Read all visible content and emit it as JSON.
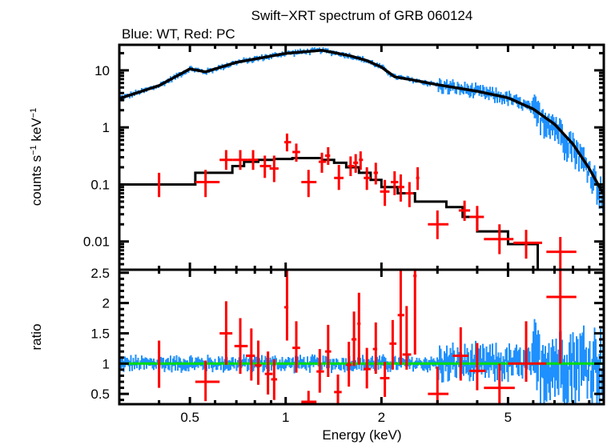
{
  "chart_data": [
    {
      "type": "scatter",
      "panel": "spectrum",
      "title": "Swift−XRT spectrum of GRB 060124",
      "subtitle": "Blue: WT, Red: PC",
      "xlabel": "Energy (keV)",
      "ylabel": "counts s⁻¹ keV⁻¹",
      "xscale": "log",
      "yscale": "log",
      "xlim": [
        0.3,
        10
      ],
      "ylim": [
        0.0032,
        28
      ],
      "xticks": [
        {
          "v": 0.5,
          "label": "0.5"
        },
        {
          "v": 1,
          "label": "1"
        },
        {
          "v": 2,
          "label": "2"
        },
        {
          "v": 5,
          "label": "5"
        }
      ],
      "yticks": [
        {
          "v": 10,
          "label": "10"
        },
        {
          "v": 1,
          "label": "1"
        },
        {
          "v": 0.1,
          "label": "0.1"
        },
        {
          "v": 0.01,
          "label": "0.01"
        }
      ],
      "series": [
        {
          "name": "WT model",
          "color": "#000000",
          "kind": "line",
          "x": [
            0.3,
            0.4,
            0.5,
            0.56,
            0.7,
            1.0,
            1.3,
            1.6,
            1.8,
            2.0,
            2.2,
            2.5,
            3.0,
            4.0,
            5.0,
            6.0,
            7.0,
            8.0,
            9.0,
            10.0
          ],
          "y": [
            3.2,
            5.4,
            10.6,
            9.4,
            13.8,
            19.8,
            22.5,
            17.9,
            14.8,
            11.4,
            7.7,
            6.8,
            5.6,
            4.3,
            3.3,
            2.1,
            1.14,
            0.51,
            0.19,
            0.066
          ]
        },
        {
          "name": "PC model",
          "color": "#000000",
          "kind": "step",
          "edges": [
            0.3,
            0.52,
            0.68,
            0.74,
            0.82,
            0.92,
            1.05,
            1.3,
            1.42,
            1.55,
            1.7,
            1.85,
            2.0,
            2.25,
            2.55,
            3.2,
            3.6,
            4.0,
            5.0,
            6.2,
            7.0
          ],
          "y": [
            0.1,
            0.16,
            0.21,
            0.25,
            0.27,
            0.28,
            0.29,
            0.27,
            0.24,
            0.2,
            0.16,
            0.12,
            0.09,
            0.07,
            0.05,
            0.04,
            0.027,
            0.015,
            0.009,
            0.0032
          ]
        },
        {
          "name": "PC data",
          "color": "#ff0000",
          "kind": "errorbar",
          "points": [
            {
              "x": 0.4,
              "xlo": 0.4,
              "xhi": 0.4,
              "y": 0.1,
              "ylo": 0.06,
              "yhi": 0.16
            },
            {
              "x": 0.56,
              "xlo": 0.52,
              "xhi": 0.62,
              "y": 0.11,
              "ylo": 0.06,
              "yhi": 0.18
            },
            {
              "x": 0.65,
              "xlo": 0.62,
              "xhi": 0.68,
              "y": 0.27,
              "ylo": 0.18,
              "yhi": 0.4
            },
            {
              "x": 0.72,
              "xlo": 0.68,
              "xhi": 0.76,
              "y": 0.27,
              "ylo": 0.18,
              "yhi": 0.4
            },
            {
              "x": 0.79,
              "xlo": 0.76,
              "xhi": 0.82,
              "y": 0.27,
              "ylo": 0.18,
              "yhi": 0.4
            },
            {
              "x": 0.86,
              "xlo": 0.83,
              "xhi": 0.9,
              "y": 0.21,
              "ylo": 0.13,
              "yhi": 0.32
            },
            {
              "x": 0.92,
              "xlo": 0.89,
              "xhi": 0.95,
              "y": 0.19,
              "ylo": 0.11,
              "yhi": 0.32
            },
            {
              "x": 1.01,
              "xlo": 0.99,
              "xhi": 1.04,
              "y": 0.55,
              "ylo": 0.38,
              "yhi": 0.78
            },
            {
              "x": 1.08,
              "xlo": 1.05,
              "xhi": 1.11,
              "y": 0.37,
              "ylo": 0.25,
              "yhi": 0.52
            },
            {
              "x": 1.18,
              "xlo": 1.12,
              "xhi": 1.25,
              "y": 0.11,
              "ylo": 0.06,
              "yhi": 0.18
            },
            {
              "x": 1.3,
              "xlo": 1.27,
              "xhi": 1.34,
              "y": 0.25,
              "ylo": 0.16,
              "yhi": 0.36
            },
            {
              "x": 1.36,
              "xlo": 1.33,
              "xhi": 1.38,
              "y": 0.32,
              "ylo": 0.22,
              "yhi": 0.45
            },
            {
              "x": 1.47,
              "xlo": 1.42,
              "xhi": 1.52,
              "y": 0.13,
              "ylo": 0.08,
              "yhi": 0.22
            },
            {
              "x": 1.6,
              "xlo": 1.57,
              "xhi": 1.64,
              "y": 0.21,
              "ylo": 0.14,
              "yhi": 0.31
            },
            {
              "x": 1.66,
              "xlo": 1.63,
              "xhi": 1.69,
              "y": 0.24,
              "ylo": 0.16,
              "yhi": 0.34
            },
            {
              "x": 1.72,
              "xlo": 1.7,
              "xhi": 1.75,
              "y": 0.27,
              "ylo": 0.18,
              "yhi": 0.38
            },
            {
              "x": 1.8,
              "xlo": 1.76,
              "xhi": 1.85,
              "y": 0.13,
              "ylo": 0.08,
              "yhi": 0.2
            },
            {
              "x": 1.92,
              "xlo": 1.89,
              "xhi": 1.95,
              "y": 0.16,
              "ylo": 0.1,
              "yhi": 0.24
            },
            {
              "x": 2.05,
              "xlo": 1.98,
              "xhi": 2.12,
              "y": 0.075,
              "ylo": 0.042,
              "yhi": 0.12
            },
            {
              "x": 2.2,
              "xlo": 2.14,
              "xhi": 2.26,
              "y": 0.11,
              "ylo": 0.065,
              "yhi": 0.17
            },
            {
              "x": 2.3,
              "xlo": 2.25,
              "xhi": 2.36,
              "y": 0.09,
              "ylo": 0.05,
              "yhi": 0.15
            },
            {
              "x": 2.45,
              "xlo": 2.38,
              "xhi": 2.52,
              "y": 0.07,
              "ylo": 0.04,
              "yhi": 0.11
            },
            {
              "x": 2.6,
              "xlo": 2.57,
              "xhi": 2.63,
              "y": 0.13,
              "ylo": 0.08,
              "yhi": 0.2
            },
            {
              "x": 3.0,
              "xlo": 2.8,
              "xhi": 3.25,
              "y": 0.02,
              "ylo": 0.011,
              "yhi": 0.035
            },
            {
              "x": 3.65,
              "xlo": 3.5,
              "xhi": 3.8,
              "y": 0.035,
              "ylo": 0.023,
              "yhi": 0.052
            },
            {
              "x": 4.0,
              "xlo": 3.78,
              "xhi": 4.2,
              "y": 0.027,
              "ylo": 0.015,
              "yhi": 0.042
            },
            {
              "x": 4.7,
              "xlo": 4.2,
              "xhi": 5.2,
              "y": 0.011,
              "ylo": 0.006,
              "yhi": 0.02
            },
            {
              "x": 5.7,
              "xlo": 5.2,
              "xhi": 6.4,
              "y": 0.0095,
              "ylo": 0.005,
              "yhi": 0.016
            },
            {
              "x": 7.3,
              "xlo": 6.6,
              "xhi": 8.2,
              "y": 0.0066,
              "ylo": 0.0032,
              "yhi": 0.012
            }
          ]
        },
        {
          "name": "WT data",
          "color": "#1e90ff",
          "kind": "noisy-band",
          "note": "dense binned data closely scattered around WT model, increasing scatter above 6 keV"
        }
      ]
    },
    {
      "type": "scatter",
      "panel": "ratio",
      "xlabel": "Energy (keV)",
      "ylabel": "ratio",
      "xscale": "log",
      "xlim": [
        0.3,
        10
      ],
      "ylim": [
        0.33,
        2.55
      ],
      "xticks": [
        {
          "v": 0.5,
          "label": "0.5"
        },
        {
          "v": 1,
          "label": "1"
        },
        {
          "v": 2,
          "label": "2"
        },
        {
          "v": 5,
          "label": "5"
        }
      ],
      "yticks": [
        {
          "v": 2.5,
          "label": "2.5"
        },
        {
          "v": 2,
          "label": "2"
        },
        {
          "v": 1.5,
          "label": "1.5"
        },
        {
          "v": 1,
          "label": "1"
        },
        {
          "v": 0.5,
          "label": "0.5"
        }
      ],
      "reference_line": {
        "y": 1,
        "color": "#00dd00"
      },
      "series": [
        {
          "name": "PC ratio",
          "color": "#ff0000",
          "kind": "errorbar",
          "points": [
            {
              "x": 0.4,
              "xlo": 0.4,
              "xhi": 0.4,
              "y": 1.0,
              "ylo": 0.6,
              "yhi": 1.38
            },
            {
              "x": 0.56,
              "xlo": 0.52,
              "xhi": 0.62,
              "y": 0.7,
              "ylo": 0.38,
              "yhi": 1.05
            },
            {
              "x": 0.65,
              "xlo": 0.62,
              "xhi": 0.68,
              "y": 1.5,
              "ylo": 0.98,
              "yhi": 2.03
            },
            {
              "x": 0.72,
              "xlo": 0.69,
              "xhi": 0.76,
              "y": 1.29,
              "ylo": 0.83,
              "yhi": 1.75
            },
            {
              "x": 0.78,
              "xlo": 0.75,
              "xhi": 0.8,
              "y": 1.13,
              "ylo": 0.72,
              "yhi": 1.58
            },
            {
              "x": 0.82,
              "xlo": 0.8,
              "xhi": 0.84,
              "y": 0.97,
              "ylo": 0.65,
              "yhi": 1.38
            },
            {
              "x": 0.88,
              "xlo": 0.86,
              "xhi": 0.91,
              "y": 0.83,
              "ylo": 0.49,
              "yhi": 1.2
            },
            {
              "x": 0.92,
              "xlo": 0.9,
              "xhi": 0.94,
              "y": 0.74,
              "ylo": 0.4,
              "yhi": 1.07
            },
            {
              "x": 1.01,
              "xlo": 0.99,
              "xhi": 1.02,
              "y": 1.93,
              "ylo": 1.38,
              "yhi": 2.55
            },
            {
              "x": 1.08,
              "xlo": 1.05,
              "xhi": 1.11,
              "y": 1.26,
              "ylo": 0.85,
              "yhi": 1.7
            },
            {
              "x": 1.18,
              "xlo": 1.12,
              "xhi": 1.25,
              "y": 0.37,
              "ylo": 0.3,
              "yhi": 0.55
            },
            {
              "x": 1.28,
              "xlo": 1.25,
              "xhi": 1.32,
              "y": 0.87,
              "ylo": 0.52,
              "yhi": 1.24
            },
            {
              "x": 1.36,
              "xlo": 1.33,
              "xhi": 1.39,
              "y": 1.2,
              "ylo": 0.78,
              "yhi": 1.64
            },
            {
              "x": 1.46,
              "xlo": 1.42,
              "xhi": 1.5,
              "y": 0.53,
              "ylo": 0.31,
              "yhi": 0.82
            },
            {
              "x": 1.58,
              "xlo": 1.55,
              "xhi": 1.61,
              "y": 0.98,
              "ylo": 0.62,
              "yhi": 1.36
            },
            {
              "x": 1.64,
              "xlo": 1.61,
              "xhi": 1.67,
              "y": 1.4,
              "ylo": 0.96,
              "yhi": 1.86
            },
            {
              "x": 1.7,
              "xlo": 1.68,
              "xhi": 1.72,
              "y": 1.66,
              "ylo": 0.98,
              "yhi": 2.17
            },
            {
              "x": 1.8,
              "xlo": 1.76,
              "xhi": 1.85,
              "y": 0.91,
              "ylo": 0.59,
              "yhi": 1.26
            },
            {
              "x": 1.92,
              "xlo": 1.88,
              "xhi": 1.94,
              "y": 1.24,
              "ylo": 0.83,
              "yhi": 1.68
            },
            {
              "x": 2.05,
              "xlo": 1.98,
              "xhi": 2.12,
              "y": 0.76,
              "ylo": 0.45,
              "yhi": 1.03
            },
            {
              "x": 2.17,
              "xlo": 2.12,
              "xhi": 2.23,
              "y": 1.33,
              "ylo": 0.9,
              "yhi": 1.72
            },
            {
              "x": 2.3,
              "xlo": 2.25,
              "xhi": 2.36,
              "y": 1.8,
              "ylo": 0.98,
              "yhi": 2.55
            },
            {
              "x": 2.4,
              "xlo": 2.33,
              "xhi": 2.48,
              "y": 1.15,
              "ylo": 0.9,
              "yhi": 1.95
            },
            {
              "x": 2.55,
              "xlo": 2.52,
              "xhi": 2.58,
              "y": 2.45,
              "ylo": 1.15,
              "yhi": 2.55
            },
            {
              "x": 3.0,
              "xlo": 2.8,
              "xhi": 3.25,
              "y": 0.5,
              "ylo": 0.33,
              "yhi": 0.95
            },
            {
              "x": 3.55,
              "xlo": 3.35,
              "xhi": 3.75,
              "y": 1.13,
              "ylo": 0.72,
              "yhi": 1.6
            },
            {
              "x": 4.0,
              "xlo": 3.78,
              "xhi": 4.25,
              "y": 0.88,
              "ylo": 0.56,
              "yhi": 1.34
            },
            {
              "x": 4.7,
              "xlo": 4.2,
              "xhi": 5.25,
              "y": 0.6,
              "ylo": 0.33,
              "yhi": 1.0
            },
            {
              "x": 5.7,
              "xlo": 5.0,
              "xhi": 6.6,
              "y": 1.0,
              "ylo": 0.7,
              "yhi": 1.7
            },
            {
              "x": 7.3,
              "xlo": 6.6,
              "xhi": 8.2,
              "y": 2.1,
              "ylo": 1.0,
              "yhi": 2.55
            }
          ]
        },
        {
          "name": "WT ratio",
          "color": "#1e90ff",
          "kind": "noisy-band",
          "note": "dense data around ratio 1, scatter ~0.8-1.3 below 3 keV, widening to ~0.5-1.9 above 3 keV"
        }
      ]
    }
  ]
}
